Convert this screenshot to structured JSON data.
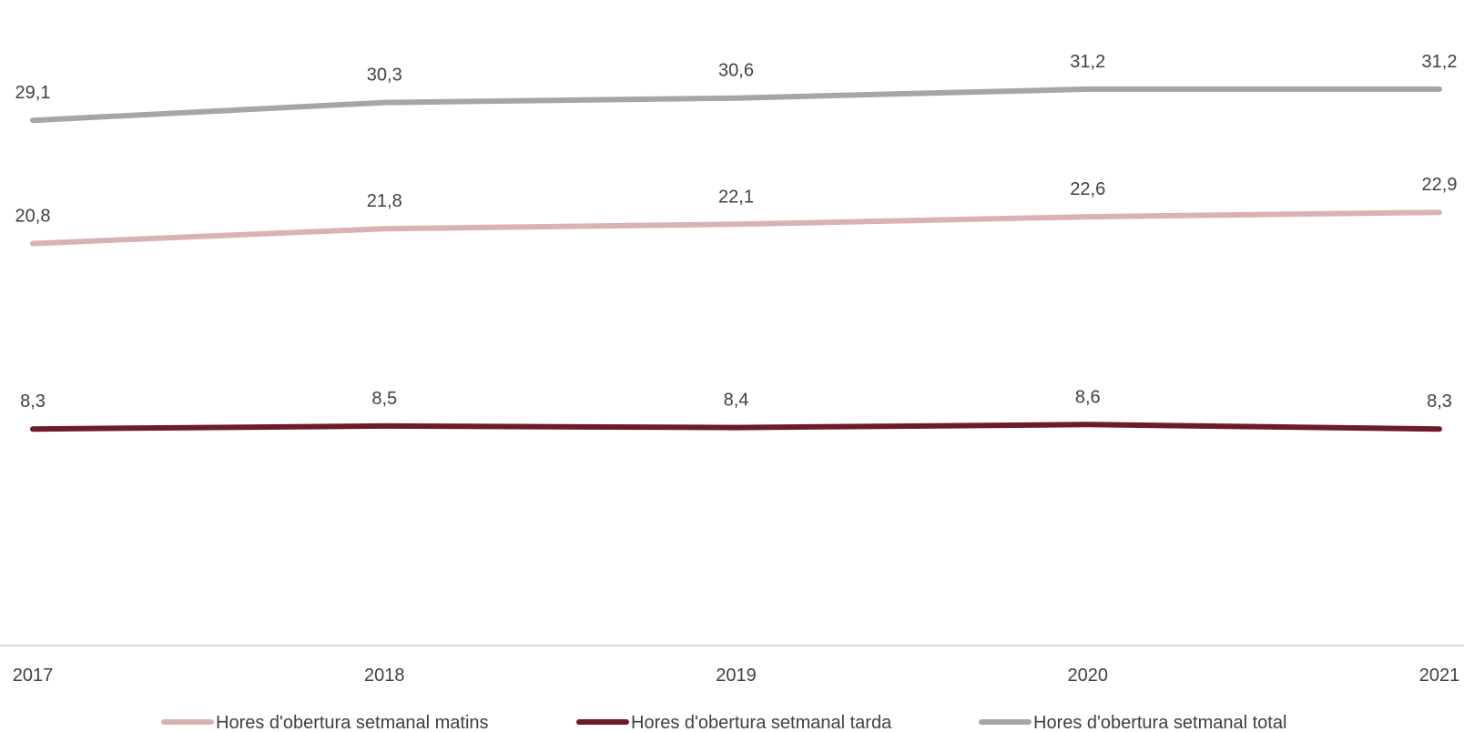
{
  "chart_data": {
    "type": "line",
    "title": "",
    "xlabel": "",
    "ylabel": "",
    "categories": [
      "2017",
      "2018",
      "2019",
      "2020",
      "2021"
    ],
    "ylim": [
      0,
      32
    ],
    "grid": false,
    "legend_position": "bottom",
    "series": [
      {
        "name": "Hores d'obertura setmanal matins",
        "color": "#d9b3b3",
        "values": [
          20.8,
          21.8,
          22.1,
          22.6,
          22.9
        ],
        "labels": [
          "20,8",
          "21,8",
          "22,1",
          "22,6",
          "22,9"
        ]
      },
      {
        "name": "Hores d'obertura setmanal tarda",
        "color": "#6b1c25",
        "values": [
          8.3,
          8.5,
          8.4,
          8.6,
          8.3
        ],
        "labels": [
          "8,3",
          "8,5",
          "8,4",
          "8,6",
          "8,3"
        ]
      },
      {
        "name": "Hores d'obertura setmanal total",
        "color": "#a6a6a6",
        "values": [
          29.1,
          30.3,
          30.6,
          31.2,
          31.2
        ],
        "labels": [
          "29,1",
          "30,3",
          "30,6",
          "31,2",
          "31,2"
        ]
      }
    ]
  }
}
